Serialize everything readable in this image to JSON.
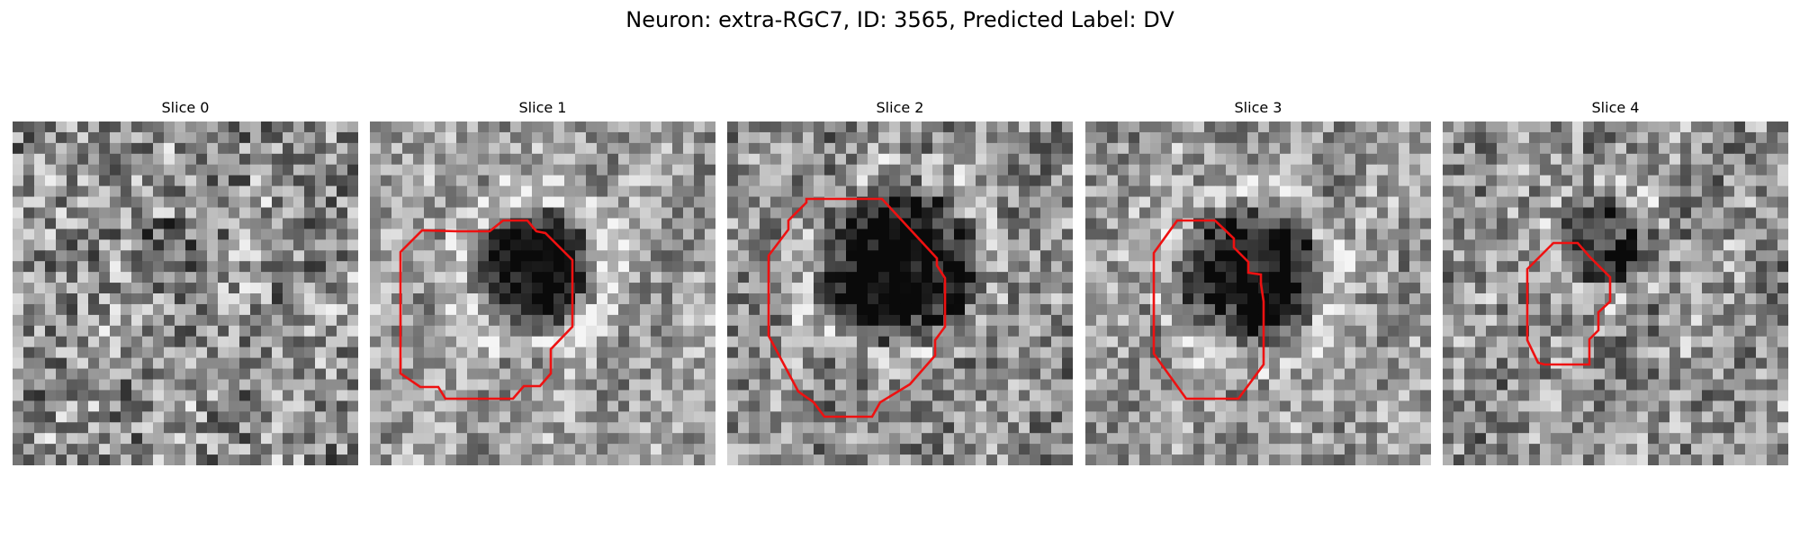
{
  "figure": {
    "title": "Neuron: extra-RGC7, ID: 3565, Predicted Label: DV"
  },
  "panels": [
    {
      "title": "Slice 0",
      "has_contour": false
    },
    {
      "title": "Slice 1",
      "has_contour": true
    },
    {
      "title": "Slice 2",
      "has_contour": true
    },
    {
      "title": "Slice 3",
      "has_contour": true
    },
    {
      "title": "Slice 4",
      "has_contour": true
    }
  ],
  "colors": {
    "contour": "#ee1111",
    "background": "#ffffff"
  },
  "image_style": "grayscale microscopy slices with red segmentation contours"
}
